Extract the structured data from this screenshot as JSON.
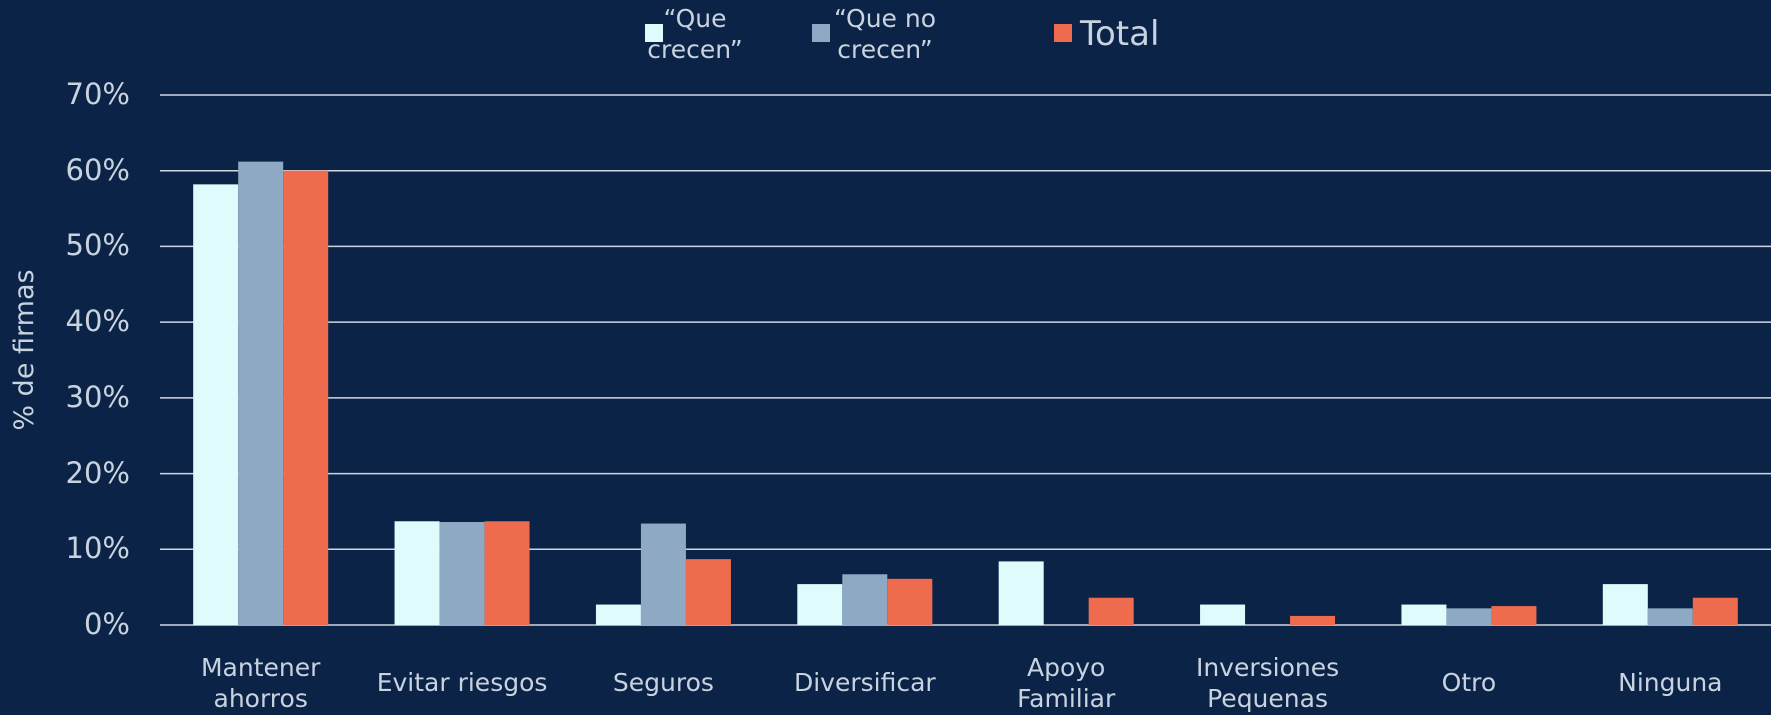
{
  "chart_data": {
    "type": "bar",
    "y_label": "% de firmas",
    "categories": [
      "Mantener ahorros",
      "Evitar riesgos",
      "Seguros",
      "Diversificar",
      "Apoyo Familiar",
      "Inversiones Pequenas",
      "Otro",
      "Ninguna"
    ],
    "series": [
      {
        "name": "“Que crecen”",
        "color": "#e0fbfc",
        "values": [
          58.2,
          13.7,
          2.7,
          5.4,
          8.4,
          2.7,
          2.7,
          5.4
        ]
      },
      {
        "name": "“Que no crecen”",
        "color": "#8ea9c4",
        "values": [
          61.2,
          13.6,
          13.4,
          6.7,
          0,
          0,
          2.2,
          2.2
        ]
      },
      {
        "name": "Total",
        "color": "#ee6c4d",
        "values": [
          60.0,
          13.7,
          8.7,
          6.1,
          3.6,
          1.2,
          2.5,
          3.6
        ]
      }
    ],
    "ylim": [
      0,
      70
    ],
    "yticks": [
      {
        "value": 0,
        "label": "0%"
      },
      {
        "value": 10,
        "label": "10%"
      },
      {
        "value": 20,
        "label": "20%"
      },
      {
        "value": 30,
        "label": "30%"
      },
      {
        "value": 40,
        "label": "40%"
      },
      {
        "value": 50,
        "label": "50%"
      },
      {
        "value": 60,
        "label": "60%"
      },
      {
        "value": 70,
        "label": "70%"
      }
    ],
    "grid": true,
    "legend": "top"
  }
}
